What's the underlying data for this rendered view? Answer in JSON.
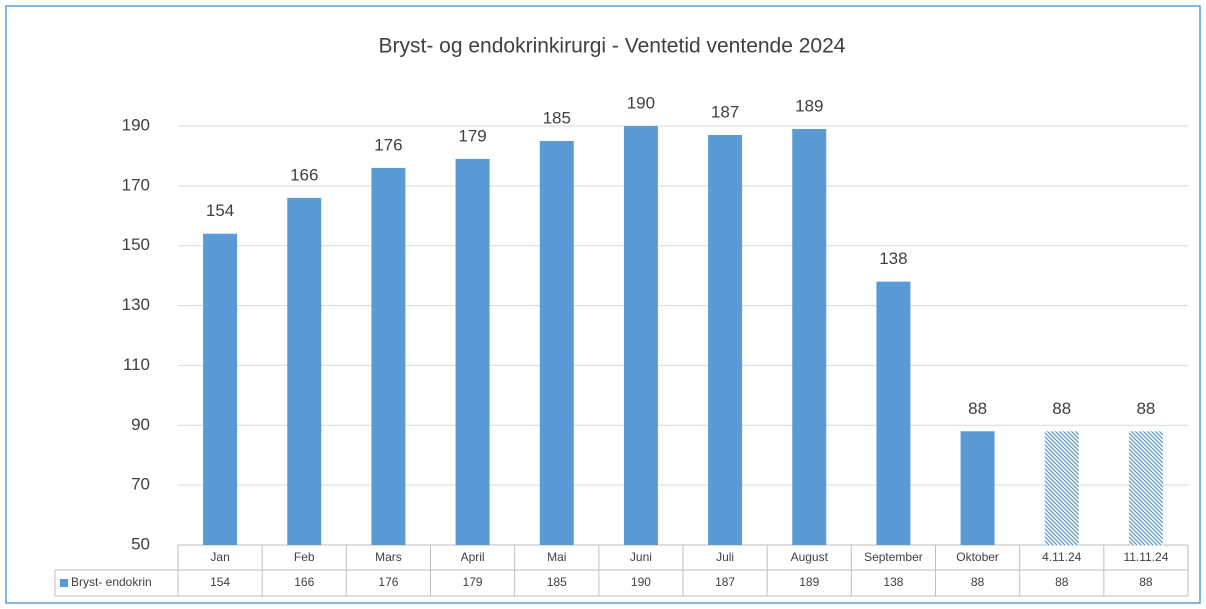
{
  "chart_data": {
    "type": "bar",
    "title": "Bryst- og endokrinkirurgi - Ventetid ventende 2024",
    "categories": [
      "Jan",
      "Feb",
      "Mars",
      "April",
      "Mai",
      "Juni",
      "Juli",
      "August",
      "September",
      "Oktober",
      "4.11.24",
      "11.11.24"
    ],
    "series": [
      {
        "name": "Bryst- endokrin",
        "color": "#5b9bd5",
        "values": [
          154,
          166,
          176,
          179,
          185,
          190,
          187,
          189,
          138,
          88,
          88,
          88
        ]
      }
    ],
    "hatched": [
      false,
      false,
      false,
      false,
      false,
      false,
      false,
      false,
      false,
      false,
      true,
      true
    ],
    "ylim": [
      50,
      190
    ],
    "yticks": [
      50,
      70,
      90,
      110,
      130,
      150,
      170,
      190
    ],
    "grid": true,
    "data_table": true
  }
}
